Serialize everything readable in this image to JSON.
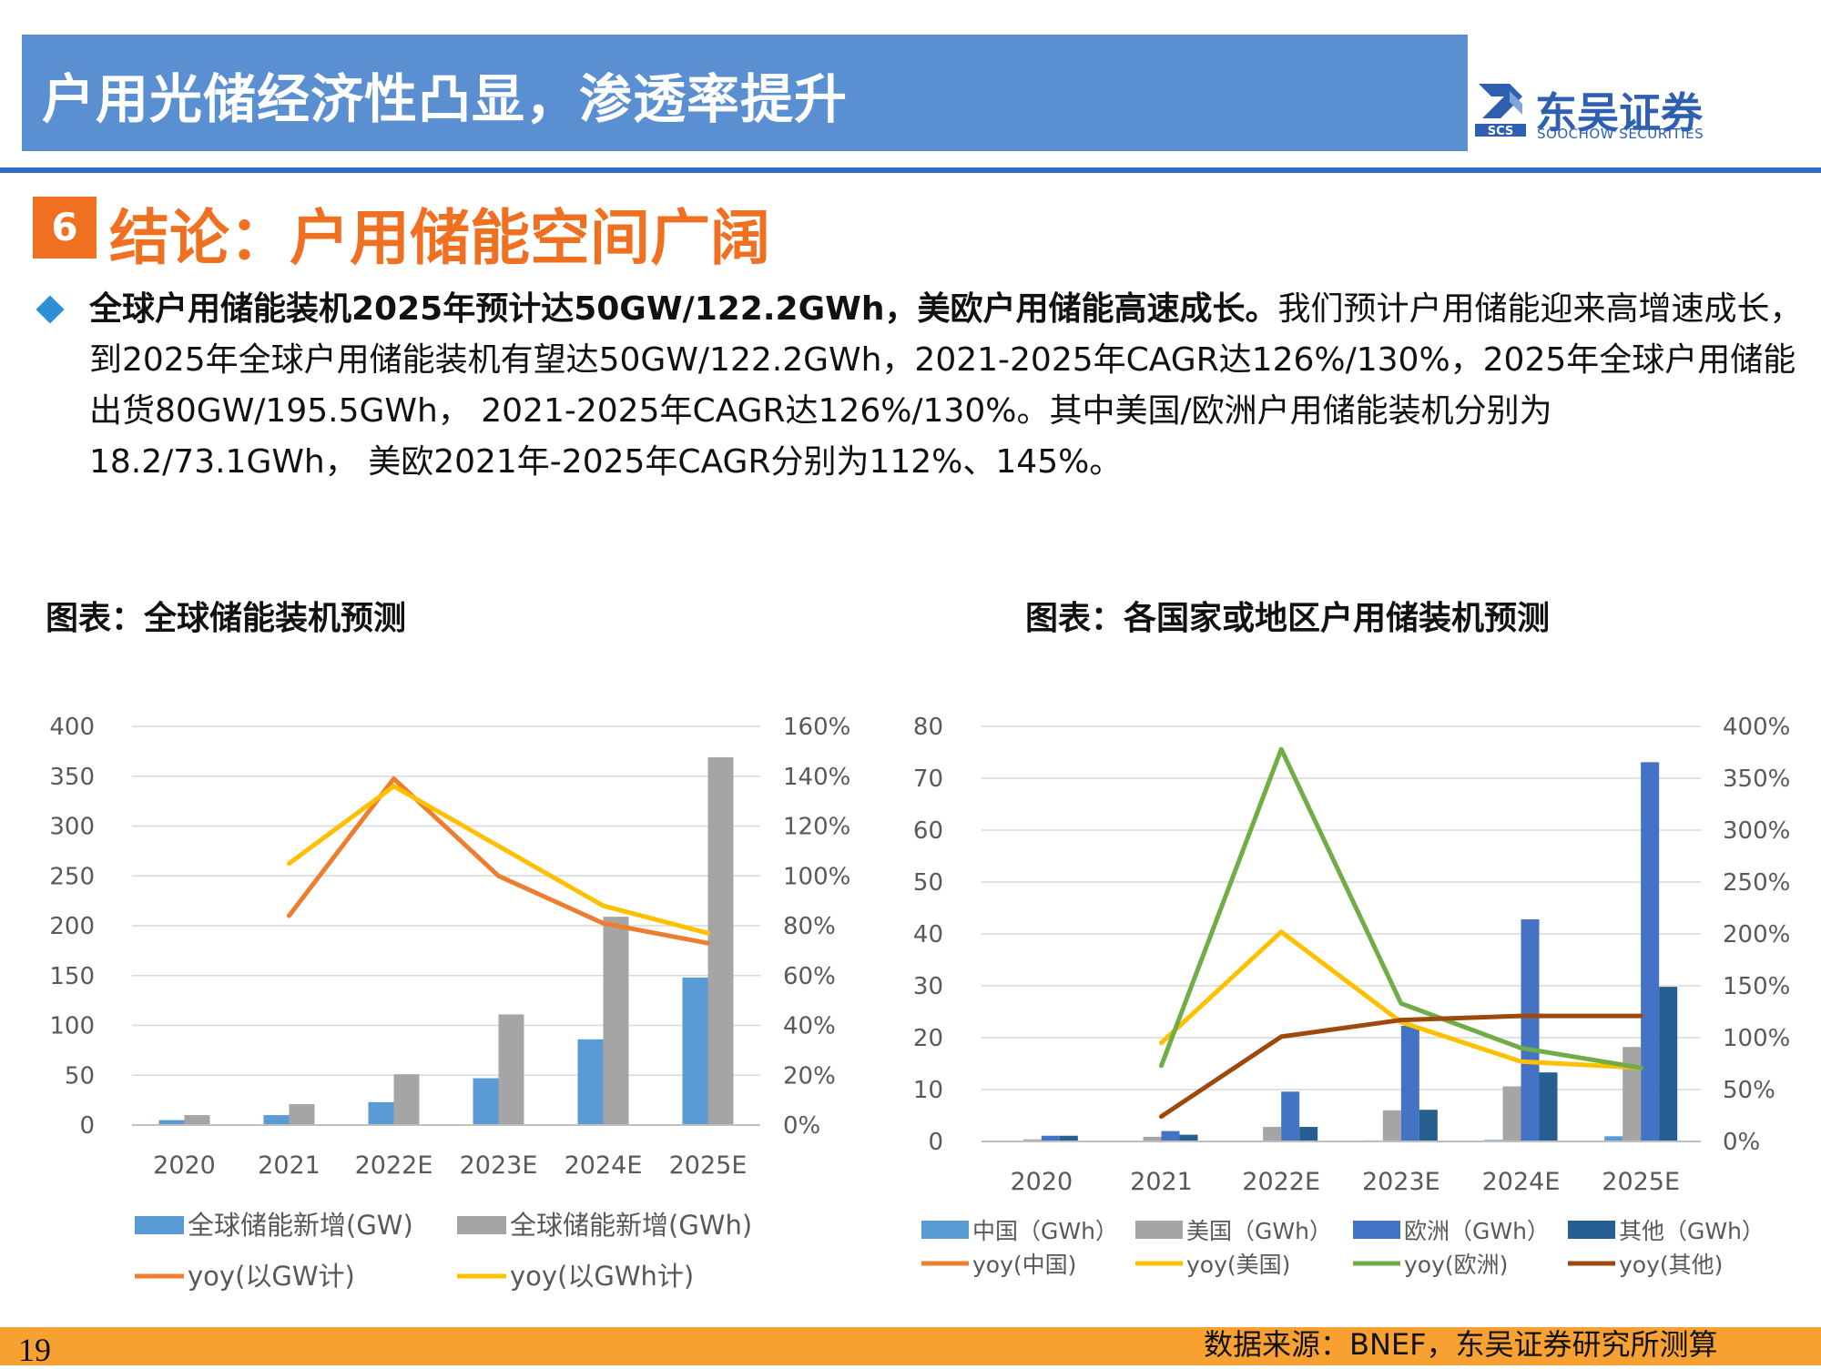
{
  "header": {
    "title": "户用光储经济性凸显，渗透率提升",
    "logo_cn": "东吴证券",
    "logo_en": "SOOCHOW SECURITIES",
    "logo_mark_text": "SCS"
  },
  "section": {
    "number": "6",
    "title": "结论：户用储能空间广阔"
  },
  "bullet": {
    "bold": "全球户用储能装机2025年预计达50GW/122.2GWh，美欧户用储能高速成长。",
    "text": "我们预计户用储能迎来高增速成长，到2025年全球户用储能装机有望达50GW/122.2GWh，2021-2025年CAGR达126%/130%，2025年全球户用储能出货80GW/195.5GWh， 2021-2025年CAGR达126%/130%。其中美国/欧洲户用储能装机分别为18.2/73.1GWh， 美欧2021年-2025年CAGR分别为112%、145%。"
  },
  "chart_titles": {
    "left": "图表：全球储能装机预测",
    "right": "图表：各国家或地区户用储装机预测"
  },
  "footer": {
    "page_number": "19",
    "source": "数据来源：BNEF，东吴证券研究所测算"
  },
  "chart_data": [
    {
      "type": "bar",
      "categories": [
        "2020",
        "2021",
        "2022E",
        "2023E",
        "2024E",
        "2025E"
      ],
      "series": [
        {
          "name": "全球储能新增(GW)",
          "type": "bar",
          "axis": "left",
          "color": "#5b9bd5",
          "values": [
            5,
            10,
            23,
            47,
            86,
            148
          ]
        },
        {
          "name": "全球储能新增(GWh)",
          "type": "bar",
          "axis": "left",
          "color": "#a5a5a5",
          "values": [
            10,
            21,
            51,
            111,
            209,
            369
          ]
        },
        {
          "name": "yoy(以GW计)",
          "type": "line",
          "axis": "right",
          "color": "#ed7d31",
          "values": [
            null,
            84,
            139,
            100,
            81,
            73
          ]
        },
        {
          "name": "yoy(以GWh计)",
          "type": "line",
          "axis": "right",
          "color": "#ffc000",
          "values": [
            null,
            105,
            136,
            112,
            88,
            77
          ]
        }
      ],
      "ylim": [
        0,
        400
      ],
      "yticks": [
        "0",
        "50",
        "100",
        "150",
        "200",
        "250",
        "300",
        "350",
        "400"
      ],
      "y2lim": [
        0,
        160
      ],
      "y2ticks": [
        "0%",
        "20%",
        "40%",
        "60%",
        "80%",
        "100%",
        "120%",
        "140%",
        "160%"
      ],
      "grid": true,
      "legend": "bottom"
    },
    {
      "type": "bar",
      "categories": [
        "2020",
        "2021",
        "2022E",
        "2023E",
        "2024E",
        "2025E"
      ],
      "series": [
        {
          "name": "中国（GWh）",
          "type": "bar",
          "axis": "left",
          "color": "#5b9bd5",
          "values": [
            0.1,
            0.1,
            0.1,
            0.2,
            0.3,
            1.0
          ]
        },
        {
          "name": "美国（GWh）",
          "type": "bar",
          "axis": "left",
          "color": "#a5a5a5",
          "values": [
            0.4,
            0.9,
            2.8,
            6.0,
            10.6,
            18.2
          ]
        },
        {
          "name": "欧洲（GWh）",
          "type": "bar",
          "axis": "left",
          "color": "#4472c4",
          "values": [
            1.1,
            2.0,
            9.6,
            22.3,
            42.8,
            73.1
          ]
        },
        {
          "name": "其他（GWh）",
          "type": "bar",
          "axis": "left",
          "color": "#255e91",
          "values": [
            1.1,
            1.3,
            2.8,
            6.1,
            13.3,
            29.8
          ]
        },
        {
          "name": "yoy(中国)",
          "type": "line",
          "axis": "right",
          "color": "#ed7d31",
          "values": [
            null,
            null,
            null,
            null,
            null,
            null
          ]
        },
        {
          "name": "yoy(美国)",
          "type": "line",
          "axis": "right",
          "color": "#ffc000",
          "values": [
            null,
            95,
            202,
            115,
            77,
            71
          ]
        },
        {
          "name": "yoy(欧洲)",
          "type": "line",
          "axis": "right",
          "color": "#70ad47",
          "values": [
            null,
            73,
            378,
            133,
            90,
            71
          ]
        },
        {
          "name": "yoy(其他)",
          "type": "line",
          "axis": "right",
          "color": "#9e480e",
          "values": [
            null,
            24,
            101,
            117,
            121,
            121
          ]
        }
      ],
      "ylim": [
        0,
        80
      ],
      "yticks": [
        "0",
        "10",
        "20",
        "30",
        "40",
        "50",
        "60",
        "70",
        "80"
      ],
      "y2lim": [
        0,
        400
      ],
      "y2ticks": [
        "0%",
        "50%",
        "100%",
        "150%",
        "200%",
        "250%",
        "300%",
        "350%",
        "400%"
      ],
      "grid": true,
      "legend": "bottom"
    }
  ]
}
